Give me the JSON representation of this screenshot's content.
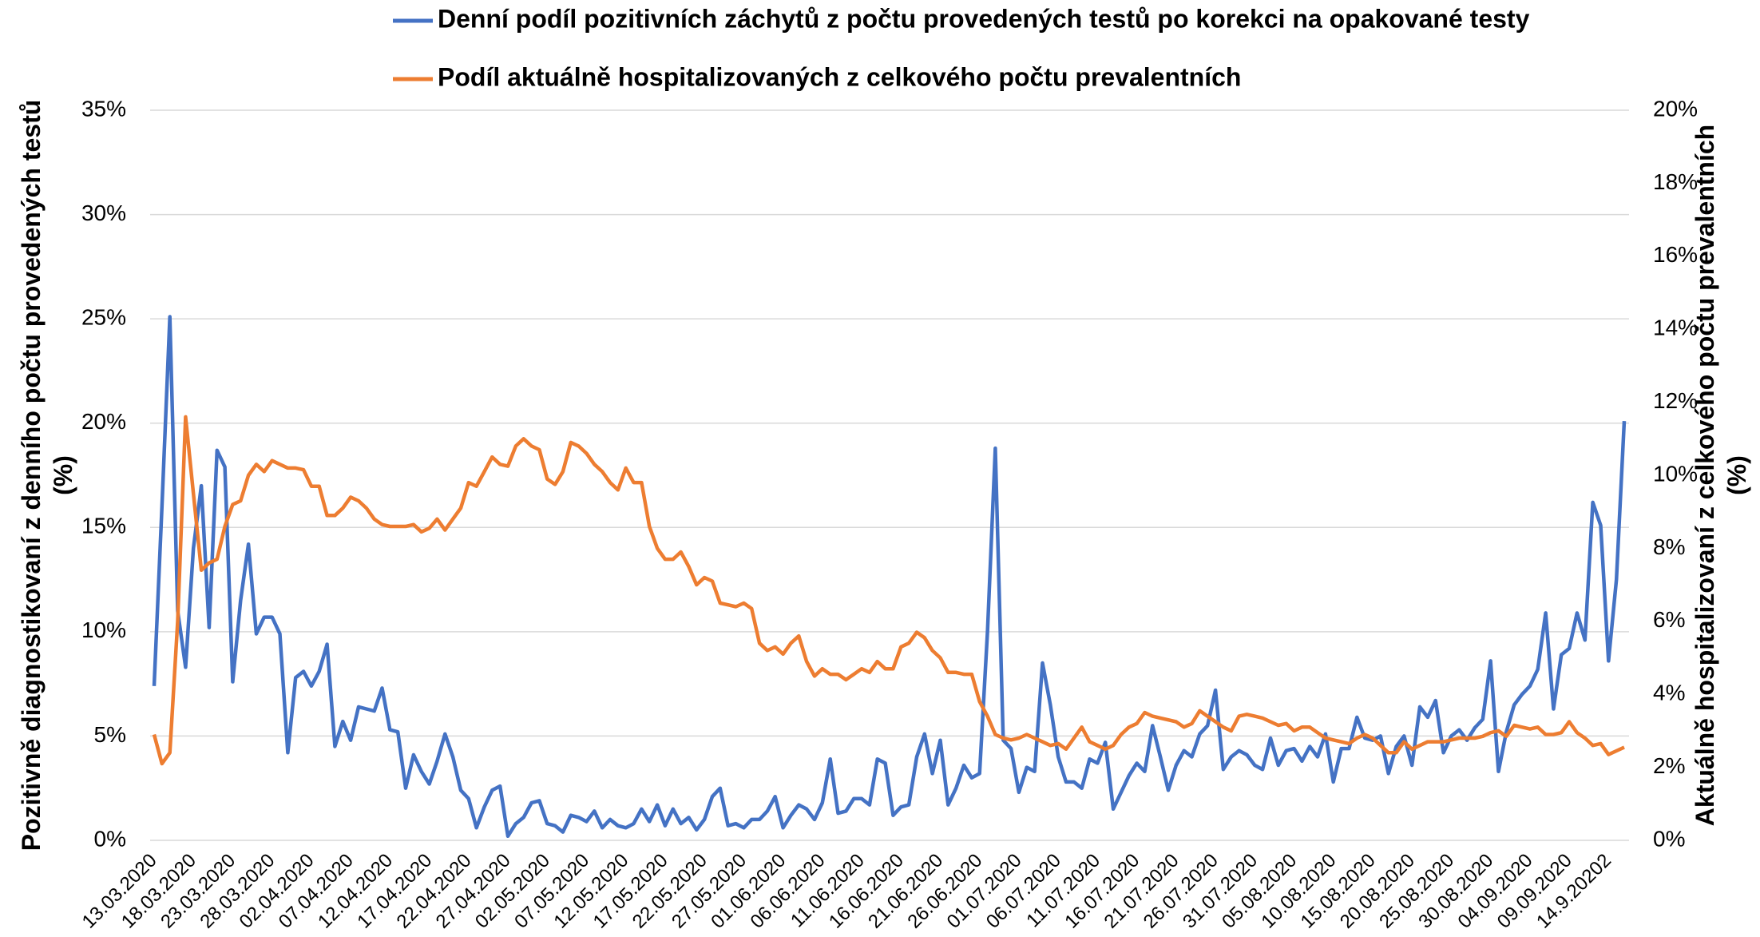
{
  "chart_data": {
    "type": "line",
    "ylabel": [
      "Pozitivně diagnostikovaní z denního počtu provedených testů",
      "(%)"
    ],
    "y2label": [
      "Aktuálně hospitalizovaní z celkového počtu prevalentních",
      "(%)"
    ],
    "categories": [
      "13.03.2020",
      null,
      null,
      null,
      null,
      "18.03.2020",
      null,
      null,
      null,
      null,
      "23.03.2020",
      null,
      null,
      null,
      null,
      "28.03.2020",
      null,
      null,
      null,
      null,
      "02.04.2020",
      null,
      null,
      null,
      null,
      "07.04.2020",
      null,
      null,
      null,
      null,
      "12.04.2020",
      null,
      null,
      null,
      null,
      "17.04.2020",
      null,
      null,
      null,
      null,
      "22.04.2020",
      null,
      null,
      null,
      null,
      "27.04.2020",
      null,
      null,
      null,
      null,
      "02.05.2020",
      null,
      null,
      null,
      null,
      "07.05.2020",
      null,
      null,
      null,
      null,
      "12.05.2020",
      null,
      null,
      null,
      null,
      "17.05.2020",
      null,
      null,
      null,
      null,
      "22.05.2020",
      null,
      null,
      null,
      null,
      "27.05.2020",
      null,
      null,
      null,
      null,
      "01.06.2020",
      null,
      null,
      null,
      null,
      "06.06.2020",
      null,
      null,
      null,
      null,
      "11.06.2020",
      null,
      null,
      null,
      null,
      "16.06.2020",
      null,
      null,
      null,
      null,
      "21.06.2020",
      null,
      null,
      null,
      null,
      "26.06.2020",
      null,
      null,
      null,
      null,
      "01.07.2020",
      null,
      null,
      null,
      null,
      "06.07.2020",
      null,
      null,
      null,
      null,
      "11.07.2020",
      null,
      null,
      null,
      null,
      "16.07.2020",
      null,
      null,
      null,
      null,
      "21.07.2020",
      null,
      null,
      null,
      null,
      "26.07.2020",
      null,
      null,
      null,
      null,
      "31.07.2020",
      null,
      null,
      null,
      null,
      "05.08.2020",
      null,
      null,
      null,
      null,
      "10.08.2020",
      null,
      null,
      null,
      null,
      "15.08.2020",
      null,
      null,
      null,
      null,
      "20.08.2020",
      null,
      null,
      null,
      null,
      "25.08.2020",
      null,
      null,
      null,
      null,
      "30.08.2020",
      null,
      null,
      null,
      null,
      "04.09.2020",
      null,
      null,
      null,
      null,
      "09.09.2020",
      null,
      null,
      null,
      null,
      "14.9.20202",
      null,
      null
    ],
    "series": [
      {
        "name": "Denní podíl pozitivních záchytů z počtu provedených testů po korekci na opakované testy",
        "color": "#4472c4",
        "axis": "y",
        "values": [
          7.4,
          16,
          25.1,
          11,
          8.3,
          14,
          17,
          10.2,
          18.7,
          17.9,
          7.6,
          11.5,
          14.2,
          9.9,
          10.7,
          10.7,
          9.9,
          4.2,
          7.8,
          8.1,
          7.4,
          8.1,
          9.4,
          4.5,
          5.7,
          4.8,
          6.4,
          6.3,
          6.2,
          7.3,
          5.3,
          5.2,
          2.5,
          4.1,
          3.3,
          2.7,
          3.8,
          5.1,
          4.0,
          2.4,
          2.0,
          0.6,
          1.6,
          2.4,
          2.6,
          0.2,
          0.8,
          1.1,
          1.8,
          1.9,
          0.8,
          0.7,
          0.4,
          1.2,
          1.1,
          0.9,
          1.4,
          0.6,
          1.0,
          0.7,
          0.6,
          0.8,
          1.5,
          0.9,
          1.7,
          0.7,
          1.5,
          0.8,
          1.1,
          0.5,
          1.0,
          2.1,
          2.5,
          0.7,
          0.8,
          0.6,
          1.0,
          1.0,
          1.4,
          2.1,
          0.6,
          1.2,
          1.7,
          1.5,
          1.0,
          1.8,
          3.9,
          1.3,
          1.4,
          2.0,
          2.0,
          1.7,
          3.9,
          3.7,
          1.2,
          1.6,
          1.7,
          4.0,
          5.1,
          3.2,
          4.8,
          1.7,
          2.5,
          3.6,
          3.0,
          3.2,
          10,
          18.8,
          4.8,
          4.4,
          2.3,
          3.5,
          3.3,
          8.5,
          6.5,
          4.0,
          2.8,
          2.8,
          2.5,
          3.9,
          3.7,
          4.7,
          1.5,
          2.3,
          3.1,
          3.7,
          3.3,
          5.5,
          4.0,
          2.4,
          3.6,
          4.3,
          4.0,
          5.1,
          5.5,
          7.2,
          3.4,
          4.0,
          4.3,
          4.1,
          3.6,
          3.4,
          4.9,
          3.6,
          4.3,
          4.4,
          3.8,
          4.5,
          4.0,
          5.1,
          2.8,
          4.4,
          4.4,
          5.9,
          4.9,
          4.8,
          5.0,
          3.2,
          4.5,
          5.0,
          3.6,
          6.4,
          5.9,
          6.7,
          4.2,
          5.0,
          5.3,
          4.8,
          5.4,
          5.8,
          8.6,
          3.3,
          5.2,
          6.5,
          7.0,
          7.4,
          8.2,
          10.9,
          6.3,
          8.9,
          9.2,
          10.9,
          9.6,
          16.2,
          15.1,
          8.6,
          12.5,
          20.1
        ]
      },
      {
        "name": "Podíl aktuálně hospitalizovaných z celkového počtu prevalentních",
        "color": "#ed7d31",
        "axis": "y2",
        "values": [
          2.9,
          2.1,
          2.4,
          6,
          11.6,
          9.5,
          7.4,
          7.6,
          7.7,
          8.6,
          9.2,
          9.3,
          10.0,
          10.3,
          10.1,
          10.4,
          10.3,
          10.2,
          10.2,
          10.15,
          9.7,
          9.7,
          8.9,
          8.9,
          9.1,
          9.4,
          9.3,
          9.1,
          8.8,
          8.65,
          8.6,
          8.6,
          8.6,
          8.65,
          8.45,
          8.55,
          8.8,
          8.5,
          8.8,
          9.1,
          9.8,
          9.7,
          10.1,
          10.5,
          10.3,
          10.25,
          10.8,
          11.0,
          10.8,
          10.7,
          9.9,
          9.75,
          10.1,
          10.9,
          10.8,
          10.6,
          10.3,
          10.1,
          9.8,
          9.6,
          10.2,
          9.8,
          9.8,
          8.6,
          8.0,
          7.7,
          7.7,
          7.9,
          7.5,
          7.0,
          7.2,
          7.1,
          6.5,
          6.45,
          6.4,
          6.5,
          6.35,
          5.4,
          5.2,
          5.3,
          5.1,
          5.4,
          5.6,
          4.9,
          4.5,
          4.7,
          4.55,
          4.55,
          4.4,
          4.55,
          4.7,
          4.6,
          4.9,
          4.7,
          4.7,
          5.3,
          5.4,
          5.7,
          5.55,
          5.2,
          5.0,
          4.6,
          4.6,
          4.55,
          4.55,
          3.8,
          3.4,
          2.9,
          2.8,
          2.75,
          2.8,
          2.9,
          2.8,
          2.7,
          2.6,
          2.65,
          2.5,
          2.8,
          3.1,
          2.7,
          2.6,
          2.5,
          2.6,
          2.9,
          3.1,
          3.2,
          3.5,
          3.4,
          3.35,
          3.3,
          3.25,
          3.1,
          3.2,
          3.55,
          3.4,
          3.25,
          3.1,
          3.0,
          3.4,
          3.45,
          3.4,
          3.35,
          3.25,
          3.15,
          3.2,
          3.0,
          3.1,
          3.1,
          2.95,
          2.8,
          2.75,
          2.7,
          2.65,
          2.8,
          2.9,
          2.8,
          2.6,
          2.4,
          2.4,
          2.7,
          2.5,
          2.6,
          2.7,
          2.7,
          2.7,
          2.75,
          2.8,
          2.8,
          2.8,
          2.85,
          2.95,
          3.0,
          2.85,
          3.15,
          3.1,
          3.05,
          3.1,
          2.9,
          2.9,
          2.95,
          3.25,
          2.95,
          2.8,
          2.6,
          2.65,
          2.35,
          2.45,
          2.55
        ]
      }
    ],
    "ylim": [
      0,
      35
    ],
    "yticks": [
      {
        "value": 0,
        "label": "0%"
      },
      {
        "value": 5,
        "label": "5%"
      },
      {
        "value": 10,
        "label": "10%"
      },
      {
        "value": 15,
        "label": "15%"
      },
      {
        "value": 20,
        "label": "20%"
      },
      {
        "value": 25,
        "label": "25%"
      },
      {
        "value": 30,
        "label": "30%"
      },
      {
        "value": 35,
        "label": "35%"
      }
    ],
    "y2lim": [
      0,
      20
    ],
    "y2ticks": [
      {
        "value": 0,
        "label": "0%"
      },
      {
        "value": 2,
        "label": "2%"
      },
      {
        "value": 4,
        "label": "4%"
      },
      {
        "value": 6,
        "label": "6%"
      },
      {
        "value": 8,
        "label": "8%"
      },
      {
        "value": 10,
        "label": "10%"
      },
      {
        "value": 12,
        "label": "12%"
      },
      {
        "value": 14,
        "label": "14%"
      },
      {
        "value": 16,
        "label": "16%"
      },
      {
        "value": 18,
        "label": "18%"
      },
      {
        "value": 20,
        "label": "20%"
      }
    ],
    "grid": true,
    "legend": "top"
  }
}
